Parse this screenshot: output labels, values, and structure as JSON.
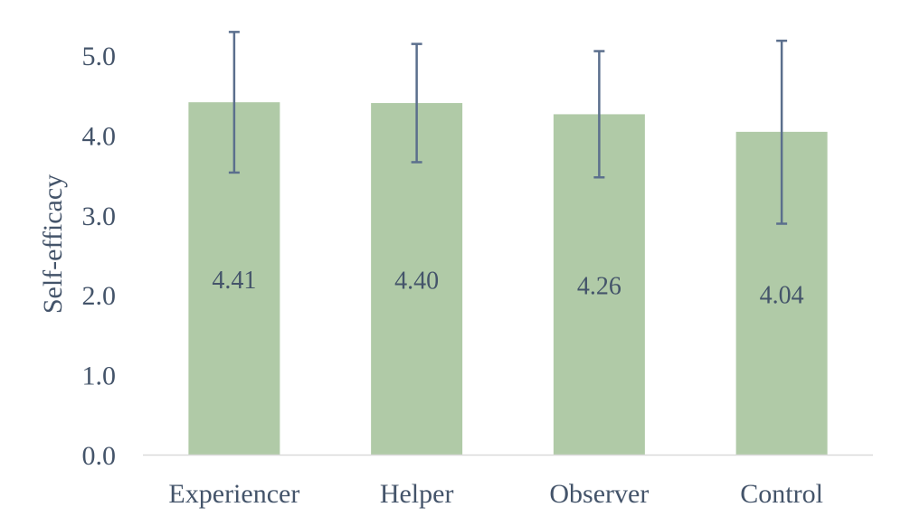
{
  "chart_data": {
    "type": "bar",
    "categories": [
      "Experiencer",
      "Helper",
      "Observer",
      "Control"
    ],
    "values": [
      4.41,
      4.4,
      4.26,
      4.04
    ],
    "data_labels": [
      "4.41",
      "4.40",
      "4.26",
      "4.04"
    ],
    "error_bars": [
      {
        "low": 3.53,
        "high": 5.29
      },
      {
        "low": 3.66,
        "high": 5.14
      },
      {
        "low": 3.47,
        "high": 5.05
      },
      {
        "low": 2.89,
        "high": 5.18
      }
    ],
    "ylabel": "Self-efficacy",
    "xlabel": "",
    "title": "",
    "ylim": [
      0,
      5
    ],
    "yticks": [
      "0.0",
      "1.0",
      "2.0",
      "3.0",
      "4.0",
      "5.0"
    ],
    "grid": false,
    "colors": {
      "bar": "#b0caa7",
      "error_bar": "#5b6f8d",
      "axis": "#d9d9d9",
      "text": "#44546a"
    }
  }
}
